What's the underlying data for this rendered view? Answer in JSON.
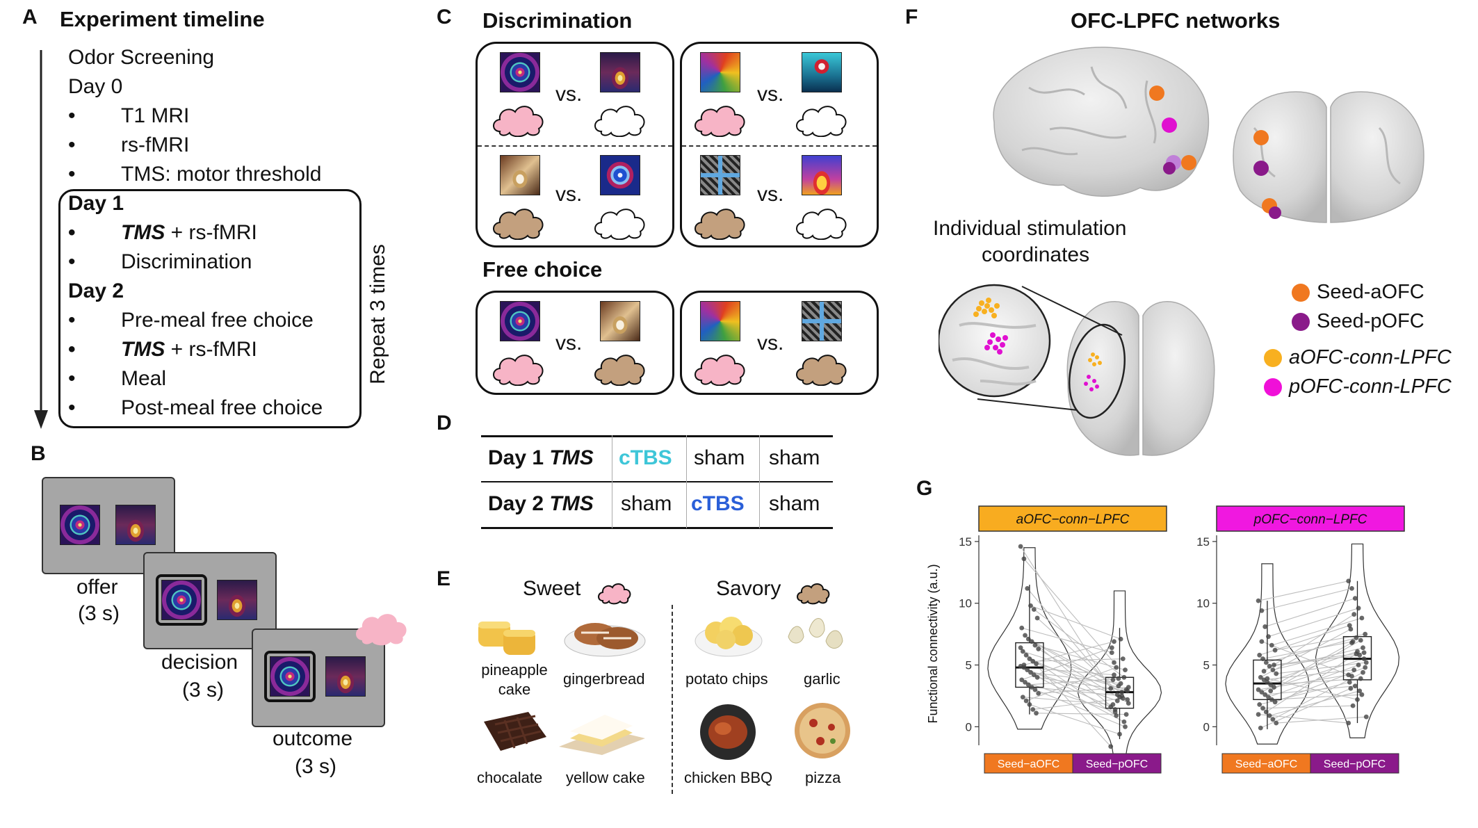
{
  "panel_labels": {
    "a": "A",
    "b": "B",
    "c": "C",
    "d": "D",
    "e": "E",
    "f": "F",
    "g": "G"
  },
  "panelA": {
    "title": "Experiment timeline",
    "screening": "Odor Screening",
    "day0": "Day 0",
    "day0_items": [
      "T1 MRI",
      "rs-fMRI",
      "TMS: motor threshold"
    ],
    "day1": "Day 1",
    "day1_items": [
      {
        "bold_prefix": "TMS",
        "rest": " + rs-fMRI"
      },
      {
        "bold_prefix": "",
        "rest": "Discrimination"
      }
    ],
    "day2": "Day 2",
    "day2_items": [
      {
        "bold_prefix": "",
        "rest": "Pre-meal free choice"
      },
      {
        "bold_prefix": "TMS",
        "rest": " + rs-fMRI"
      },
      {
        "bold_prefix": "",
        "rest": "Meal"
      },
      {
        "bold_prefix": "",
        "rest": "Post-meal free choice"
      }
    ],
    "bullet": "•",
    "repeat": "Repeat 3 times"
  },
  "panelB": {
    "offer": "offer",
    "offer_dur": "(3 s)",
    "decision": "decision",
    "decision_dur": "(3 s)",
    "outcome": "outcome",
    "outcome_dur": "(3 s)"
  },
  "panelC": {
    "discrimination_title": "Discrimination",
    "free_choice_title": "Free choice",
    "vs": "vs."
  },
  "panelD": {
    "rows": [
      {
        "label": "Day 1",
        "tms": "TMS",
        "cells": [
          "cTBS",
          "sham",
          "sham"
        ]
      },
      {
        "label": "Day 2",
        "tms": "TMS",
        "cells": [
          "sham",
          "cTBS",
          "sham"
        ]
      }
    ],
    "colors": {
      "day1_ctbs": "#3ec6d8",
      "day2_ctbs": "#2a5fd8"
    }
  },
  "panelE": {
    "sweet": "Sweet",
    "savory": "Savory",
    "foods": [
      "pineapple cake",
      "gingerbread",
      "chocalate",
      "yellow cake",
      "potato chips",
      "garlic",
      "chicken BBQ",
      "pizza"
    ]
  },
  "panelF": {
    "title": "OFC-LPFC networks",
    "stim_label_1": "Individual stimulation",
    "stim_label_2": "coordinates",
    "legend": [
      {
        "label": "Seed-aOFC",
        "color": "#f07820",
        "italic": false
      },
      {
        "label": "Seed-pOFC",
        "color": "#8a1a8a",
        "italic": false
      },
      {
        "label": "aOFC-conn-LPFC",
        "color": "#f8b020",
        "italic": true
      },
      {
        "label": "pOFC-conn-LPFC",
        "color": "#f010d8",
        "italic": true
      }
    ]
  },
  "panelG": {
    "ylabel": "Functional connectivity (a.u.)",
    "facets": [
      "aOFC−conn−LPFC",
      "pOFC−conn−LPFC"
    ],
    "facet_colors": [
      "#f8ac20",
      "#f018e0"
    ],
    "x_categories": [
      "Seed−aOFC",
      "Seed−pOFC"
    ],
    "x_colors": [
      "#f07820",
      "#8a1a8a"
    ],
    "y_ticks": [
      "15",
      "10",
      "5",
      "0"
    ]
  },
  "chart_data": [
    {
      "type": "box",
      "title": "aOFC−conn−LPFC",
      "categories": [
        "Seed−aOFC",
        "Seed−pOFC"
      ],
      "ylabel": "Functional connectivity (a.u.)",
      "ylim": [
        -1.5,
        15.5
      ],
      "box_stats": [
        {
          "name": "Seed−aOFC",
          "q1": 3.2,
          "median": 4.8,
          "q3": 6.8,
          "whisker_low": 1.0,
          "whisker_high": 11.5
        },
        {
          "name": "Seed−pOFC",
          "q1": 1.5,
          "median": 2.8,
          "q3": 4.0,
          "whisker_low": -1.0,
          "whisker_high": 8.0
        }
      ],
      "paired_points": [
        [
          14.6,
          3.1
        ],
        [
          13.6,
          5.2
        ],
        [
          11.2,
          2.6
        ],
        [
          9.8,
          7.1
        ],
        [
          9.5,
          4.0
        ],
        [
          8.8,
          2.2
        ],
        [
          8.0,
          6.0
        ],
        [
          7.4,
          1.4
        ],
        [
          7.1,
          3.3
        ],
        [
          6.9,
          2.8
        ],
        [
          6.6,
          4.6
        ],
        [
          6.3,
          1.9
        ],
        [
          6.1,
          3.8
        ],
        [
          5.8,
          0.9
        ],
        [
          5.5,
          2.4
        ],
        [
          5.3,
          5.5
        ],
        [
          5.1,
          3.0
        ],
        [
          4.9,
          1.6
        ],
        [
          4.8,
          4.2
        ],
        [
          4.6,
          2.1
        ],
        [
          4.4,
          3.5
        ],
        [
          4.2,
          0.4
        ],
        [
          4.0,
          2.9
        ],
        [
          3.8,
          6.4
        ],
        [
          3.6,
          1.2
        ],
        [
          3.4,
          3.9
        ],
        [
          3.2,
          2.5
        ],
        [
          3.0,
          0.0
        ],
        [
          2.7,
          3.2
        ],
        [
          2.4,
          1.8
        ],
        [
          2.1,
          4.8
        ],
        [
          1.8,
          -0.6
        ],
        [
          1.4,
          2.3
        ],
        [
          1.1,
          1.0
        ],
        [
          6.4,
          -1.6
        ],
        [
          5.0,
          6.9
        ]
      ]
    },
    {
      "type": "box",
      "title": "pOFC−conn−LPFC",
      "categories": [
        "Seed−aOFC",
        "Seed−pOFC"
      ],
      "ylabel": "",
      "ylim": [
        -1.5,
        15.5
      ],
      "box_stats": [
        {
          "name": "Seed−aOFC",
          "q1": 2.2,
          "median": 3.5,
          "q3": 5.4,
          "whisker_low": -0.2,
          "whisker_high": 10.2
        },
        {
          "name": "Seed−pOFC",
          "q1": 3.8,
          "median": 5.5,
          "q3": 7.3,
          "whisker_low": 0.3,
          "whisker_high": 11.8
        }
      ],
      "paired_points": [
        [
          10.2,
          11.8
        ],
        [
          9.4,
          11.2
        ],
        [
          8.1,
          10.4
        ],
        [
          7.3,
          9.6
        ],
        [
          6.6,
          8.8
        ],
        [
          6.2,
          7.5
        ],
        [
          5.8,
          8.2
        ],
        [
          5.5,
          6.9
        ],
        [
          5.2,
          7.2
        ],
        [
          4.9,
          5.8
        ],
        [
          4.6,
          6.4
        ],
        [
          4.3,
          5.2
        ],
        [
          4.0,
          7.9
        ],
        [
          3.8,
          4.6
        ],
        [
          3.6,
          6.1
        ],
        [
          3.4,
          3.9
        ],
        [
          3.2,
          5.5
        ],
        [
          3.0,
          4.2
        ],
        [
          2.8,
          6.8
        ],
        [
          2.6,
          3.3
        ],
        [
          2.4,
          5.0
        ],
        [
          2.2,
          2.6
        ],
        [
          2.0,
          4.8
        ],
        [
          1.8,
          3.6
        ],
        [
          1.5,
          1.7
        ],
        [
          1.2,
          5.9
        ],
        [
          0.9,
          2.9
        ],
        [
          0.6,
          4.4
        ],
        [
          0.3,
          0.8
        ],
        [
          -0.1,
          3.1
        ],
        [
          4.5,
          9.1
        ],
        [
          3.9,
          2.2
        ],
        [
          2.9,
          7.0
        ],
        [
          5.0,
          6.0
        ],
        [
          1.0,
          0.3
        ],
        [
          6.9,
          4.1
        ]
      ]
    }
  ]
}
